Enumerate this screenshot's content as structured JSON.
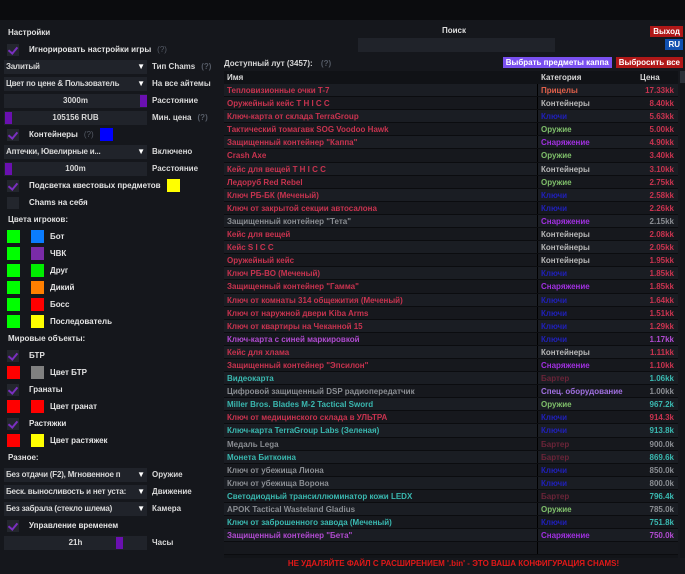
{
  "settings": {
    "title": "Настройки",
    "ignore_game_settings": {
      "label": "Игнорировать настройки игры",
      "hint": "(?)",
      "checked": true
    },
    "chams_type": {
      "value": "Залитый",
      "label": "Тип Chams",
      "hint": "(?)"
    },
    "all_items": {
      "value": "Цвет по цене & Пользователь",
      "label": "На все айтемы"
    },
    "distance": {
      "value": "3000m",
      "label": "Расстояние"
    },
    "min_price": {
      "value": "105156 RUB",
      "label": "Мин. цена",
      "hint": "(?)"
    },
    "containers": {
      "label": "Контейнеры",
      "hint": "(?)",
      "checked": true,
      "color": "#0000ff"
    },
    "enabled": {
      "value": "Аптечки, Ювелирные и...",
      "label": "Включено"
    },
    "distance2": {
      "value": "100m",
      "label": "Расстояние"
    },
    "quest_highlight": {
      "label": "Подсветка квестовых предметов",
      "checked": true,
      "color": "#ffff00"
    },
    "chams_self": {
      "label": "Chams на себя",
      "checked": false
    }
  },
  "player_colors": {
    "title": "Цвета игроков:",
    "items": [
      {
        "label": "Бот",
        "c1": "#00ff00",
        "c2": "#0a7cff"
      },
      {
        "label": "ЧВК",
        "c1": "#00ff00",
        "c2": "#7a2ba8"
      },
      {
        "label": "Друг",
        "c1": "#00ff00",
        "c2": "#00ee00"
      },
      {
        "label": "Дикий",
        "c1": "#00ff00",
        "c2": "#ff7f00"
      },
      {
        "label": "Босс",
        "c1": "#00ff00",
        "c2": "#ff0000"
      },
      {
        "label": "Последователь",
        "c1": "#00ff00",
        "c2": "#ffff00"
      }
    ]
  },
  "world": {
    "title": "Мировые объекты:",
    "btr": {
      "label": "БТР",
      "checked": true,
      "color_label": "Цвет БТР",
      "c1": "#ff0000",
      "c2": "#808080"
    },
    "grenades": {
      "label": "Гранаты",
      "checked": true,
      "color_label": "Цвет гранат",
      "c1": "#ff0000",
      "c2": "#ff0000"
    },
    "tripwires": {
      "label": "Растяжки",
      "checked": true,
      "color_label": "Цвет растяжек",
      "c1": "#ff0000",
      "c2": "#ffff00"
    }
  },
  "misc": {
    "title": "Разное:",
    "weapon": {
      "value": "Без отдачи (F2), Мгновенное п",
      "label": "Оружие"
    },
    "movement": {
      "value": "Беск. выносливость и нет уста:",
      "label": "Движение"
    },
    "camera": {
      "value": "Без забрала (стекло шлема)",
      "label": "Камера"
    },
    "time_control": {
      "label": "Управление временем",
      "checked": true
    },
    "hours": {
      "value": "21h",
      "label": "Часы"
    }
  },
  "header": {
    "search_label": "Поиск",
    "search_value": "",
    "exit": "Выход",
    "lang": "RU"
  },
  "loot": {
    "title": "Доступный лут (3457):",
    "hint": "(?)",
    "select_kappa": "Выбрать предметы каппа",
    "drop_all": "Выбросить все",
    "columns": [
      "Имя",
      "Категория",
      "Цена"
    ],
    "colors": {
      "red": "#c8334f",
      "gray": "#8a8d92",
      "teal": "#3ab8b0",
      "purple": "#b04ad0"
    },
    "category_colors": {
      "Прицелы": "#e0604a",
      "Контейнеры": "#b8b8b8",
      "Ключи": "#2020b8",
      "Оружие": "#7fbf6a",
      "Снаряжение": "#a030e0",
      "Бартер": "#6a2438",
      "Спец. оборудование": "#a070e0"
    },
    "rows": [
      {
        "name": "Тепловизионные очки T-7",
        "category": "Прицелы",
        "price": "17.33kk",
        "color": "red"
      },
      {
        "name": "Оружейный кейс T H I C C",
        "category": "Контейнеры",
        "price": "8.40kk",
        "color": "red"
      },
      {
        "name": "Ключ-карта от склада TerraGroup",
        "category": "Ключи",
        "price": "5.63kk",
        "color": "red"
      },
      {
        "name": "Тактический томагавк SOG Voodoo Hawk",
        "category": "Оружие",
        "price": "5.00kk",
        "color": "red"
      },
      {
        "name": "Защищенный контейнер \"Каппа\"",
        "category": "Снаряжение",
        "price": "4.90kk",
        "color": "red"
      },
      {
        "name": "Crash Axe",
        "category": "Оружие",
        "price": "3.40kk",
        "color": "red"
      },
      {
        "name": "Кейс для вещей T H I C C",
        "category": "Контейнеры",
        "price": "3.10kk",
        "color": "red"
      },
      {
        "name": "Ледоруб Red Rebel",
        "category": "Оружие",
        "price": "2.75kk",
        "color": "red"
      },
      {
        "name": "Ключ РБ-БК (Меченый)",
        "category": "Ключи",
        "price": "2.58kk",
        "color": "red"
      },
      {
        "name": "Ключ от закрытой секции автосалона",
        "category": "Ключи",
        "price": "2.26kk",
        "color": "red"
      },
      {
        "name": "Защищенный контейнер \"Тета\"",
        "category": "Снаряжение",
        "price": "2.15kk",
        "color": "gray"
      },
      {
        "name": "Кейс для вещей",
        "category": "Контейнеры",
        "price": "2.08kk",
        "color": "red"
      },
      {
        "name": "Кейс S I C C",
        "category": "Контейнеры",
        "price": "2.05kk",
        "color": "red"
      },
      {
        "name": "Оружейный кейс",
        "category": "Контейнеры",
        "price": "1.95kk",
        "color": "red"
      },
      {
        "name": "Ключ РБ-ВО (Меченый)",
        "category": "Ключи",
        "price": "1.85kk",
        "color": "red"
      },
      {
        "name": "Защищенный контейнер \"Гамма\"",
        "category": "Снаряжение",
        "price": "1.85kk",
        "color": "red"
      },
      {
        "name": "Ключ от комнаты 314 общежития (Меченый)",
        "category": "Ключи",
        "price": "1.64kk",
        "color": "red"
      },
      {
        "name": "Ключ от наружной двери Kiba Arms",
        "category": "Ключи",
        "price": "1.51kk",
        "color": "red"
      },
      {
        "name": "Ключ от квартиры на Чеканной 15",
        "category": "Ключи",
        "price": "1.29kk",
        "color": "red"
      },
      {
        "name": "Ключ-карта с синей маркировкой",
        "category": "Ключи",
        "price": "1.17kk",
        "color": "purple"
      },
      {
        "name": "Кейс для хлама",
        "category": "Контейнеры",
        "price": "1.11kk",
        "color": "red"
      },
      {
        "name": "Защищенный контейнер \"Эпсилон\"",
        "category": "Снаряжение",
        "price": "1.10kk",
        "color": "red"
      },
      {
        "name": "Видеокарта",
        "category": "Бартер",
        "price": "1.06kk",
        "color": "teal"
      },
      {
        "name": "Цифровой защищенный DSP радиопередатчик",
        "category": "Спец. оборудование",
        "price": "1.00kk",
        "color": "gray"
      },
      {
        "name": "Miller Bros. Blades M-2 Tactical Sword",
        "category": "Оружие",
        "price": "967.2k",
        "color": "teal"
      },
      {
        "name": "Ключ от медицинского склада в УЛЬТРА",
        "category": "Ключи",
        "price": "914.3k",
        "color": "red"
      },
      {
        "name": "Ключ-карта TerraGroup Labs (Зеленая)",
        "category": "Ключи",
        "price": "913.8k",
        "color": "teal"
      },
      {
        "name": "Медаль Lega",
        "category": "Бартер",
        "price": "900.0k",
        "color": "gray"
      },
      {
        "name": "Монета Биткоина",
        "category": "Бартер",
        "price": "869.6k",
        "color": "teal"
      },
      {
        "name": "Ключ от убежища Лиона",
        "category": "Ключи",
        "price": "850.0k",
        "color": "gray"
      },
      {
        "name": "Ключ от убежища Ворона",
        "category": "Ключи",
        "price": "800.0k",
        "color": "gray"
      },
      {
        "name": "Светодиодный трансиллюминатор кожи LEDX",
        "category": "Бартер",
        "price": "796.4k",
        "color": "teal"
      },
      {
        "name": "APOK Tactical Wasteland Gladius",
        "category": "Оружие",
        "price": "785.0k",
        "color": "gray"
      },
      {
        "name": "Ключ от заброшенного завода (Меченый)",
        "category": "Ключи",
        "price": "751.8k",
        "color": "teal"
      },
      {
        "name": "Защищенный контейнер \"Бета\"",
        "category": "Снаряжение",
        "price": "750.0k",
        "color": "purple"
      }
    ]
  },
  "footer": "НЕ УДАЛЯЙТЕ ФАЙЛ С РАСШИРЕНИЕМ '.bin' - ЭТО ВАША КОНФИГУРАЦИЯ CHAMS!"
}
